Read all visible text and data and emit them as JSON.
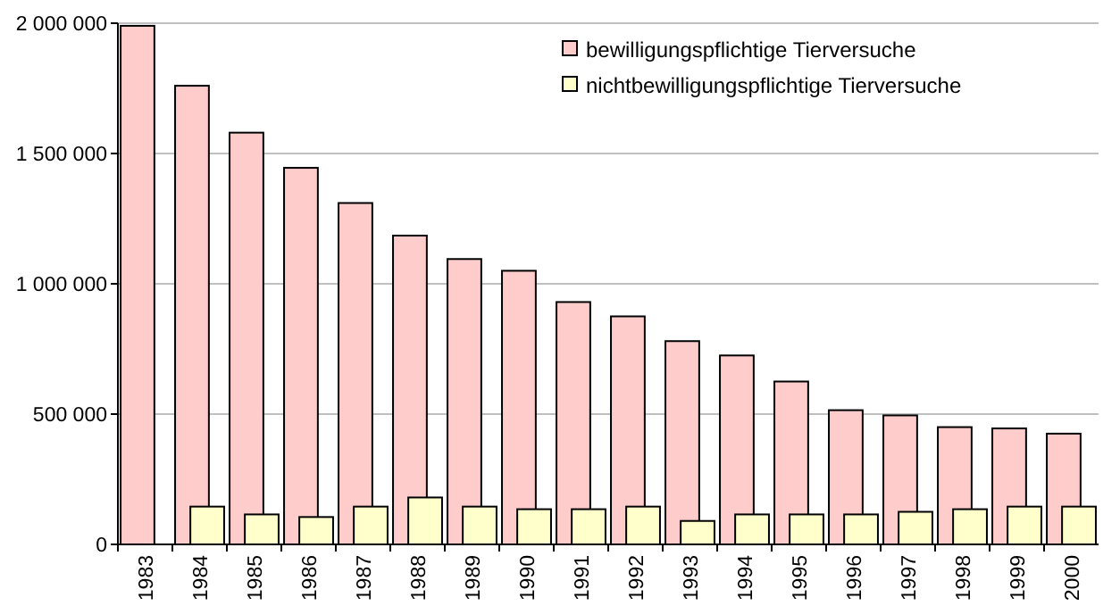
{
  "chart_data": {
    "type": "bar",
    "categories": [
      "1983",
      "1984",
      "1985",
      "1986",
      "1987",
      "1988",
      "1989",
      "1990",
      "1991",
      "1992",
      "1993",
      "1994",
      "1995",
      "1996",
      "1997",
      "1998",
      "1999",
      "2000"
    ],
    "series": [
      {
        "name": "bewilligungspflichtige Tierversuche",
        "color": "#ffcccc",
        "values": [
          1990000,
          1760000,
          1580000,
          1445000,
          1310000,
          1185000,
          1095000,
          1050000,
          930000,
          875000,
          780000,
          725000,
          625000,
          515000,
          495000,
          450000,
          445000,
          425000
        ]
      },
      {
        "name": "nichtbewilligungspflichtige Tierversuche",
        "color": "#ffffcc",
        "values": [
          null,
          145000,
          115000,
          105000,
          145000,
          180000,
          145000,
          135000,
          135000,
          145000,
          90000,
          115000,
          115000,
          115000,
          125000,
          135000,
          145000,
          145000
        ]
      }
    ],
    "ylim": [
      0,
      2000000
    ],
    "yticks": [
      {
        "value": 0,
        "label": "0"
      },
      {
        "value": 500000,
        "label": "500 000"
      },
      {
        "value": 1000000,
        "label": "1 000 000"
      },
      {
        "value": 1500000,
        "label": "1 500 000"
      },
      {
        "value": 2000000,
        "label": "2 000 000"
      }
    ],
    "grid": "y",
    "legend": "top right"
  }
}
